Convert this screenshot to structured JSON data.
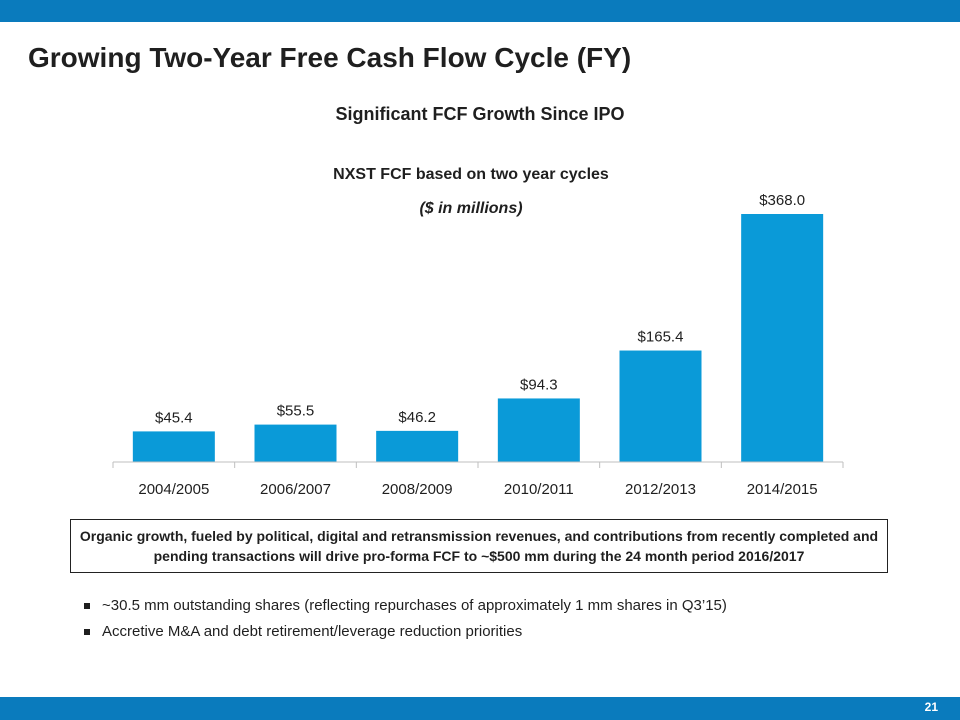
{
  "slide": {
    "title": "Growing Two-Year Free Cash Flow Cycle (FY)",
    "subtitle": "Significant FCF Growth Since IPO",
    "page_number": "21"
  },
  "chart_data": {
    "type": "bar",
    "title": "NXST FCF based on two year cycles",
    "subtitle": "($ in millions)",
    "categories": [
      "2004/2005",
      "2006/2007",
      "2008/2009",
      "2010/2011",
      "2012/2013",
      "2014/2015"
    ],
    "values": [
      45.4,
      55.5,
      46.2,
      94.3,
      165.4,
      368.0
    ],
    "data_labels": [
      "$45.4",
      "$55.5",
      "$46.2",
      "$94.3",
      "$165.4",
      "$368.0"
    ],
    "xlabel": "",
    "ylabel": "",
    "ylim": [
      0,
      368.0
    ],
    "grid": false,
    "legend": "none",
    "bar_color": "#0a9ad8"
  },
  "callout": {
    "text": "Organic growth, fueled by political, digital and retransmission revenues, and contributions from recently completed and pending transactions will drive pro-forma FCF  to ~$500 mm during the 24 month period 2016/2017"
  },
  "bullets": [
    "~30.5 mm outstanding shares (reflecting repurchases of approximately 1 mm shares in Q3’15)",
    "Accretive M&A and debt retirement/leverage reduction priorities"
  ],
  "colors": {
    "accent_bar": "#0a7bbd",
    "chart_bar": "#0a9ad8"
  }
}
